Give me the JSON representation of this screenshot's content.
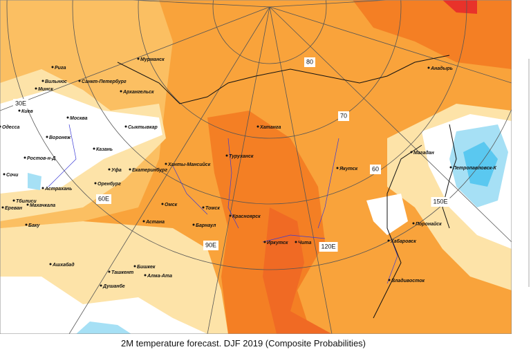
{
  "map": {
    "grid_labels": [
      "80",
      "70",
      "60",
      "30E",
      "60E",
      "90E",
      "120E",
      "150E"
    ],
    "cities": [
      "Рига",
      "Вильнюс",
      "Минск",
      "Санкт-Петербург",
      "Мурманск",
      "Архангельск",
      "Киев",
      "Москва",
      "Одесса",
      "Сыктывкар",
      "Воронеж",
      "Казань",
      "Ростов-н-Д",
      "Ханты-Мансийск",
      "Туруханск",
      "Хатанга",
      "Екатеринбург",
      "Уфа",
      "Сочи",
      "Астрахань",
      "Оренбург",
      "Тбилиси",
      "Махачкала",
      "Ереван",
      "Омск",
      "Томск",
      "Красноярск",
      "Баку",
      "Астана",
      "Барнаул",
      "Иркутск",
      "Чита",
      "Якутск",
      "Магадан",
      "Петропавловск-К",
      "Поронайск",
      "Хабаровск",
      "Владивосток",
      "Ашхабад",
      "Бишкек",
      "Алма-Ата",
      "Ташкент",
      "Душанбе",
      "Анадырь"
    ]
  },
  "caption": "2M temperature forecast. DJF 2019 (Composite Probabilities)"
}
